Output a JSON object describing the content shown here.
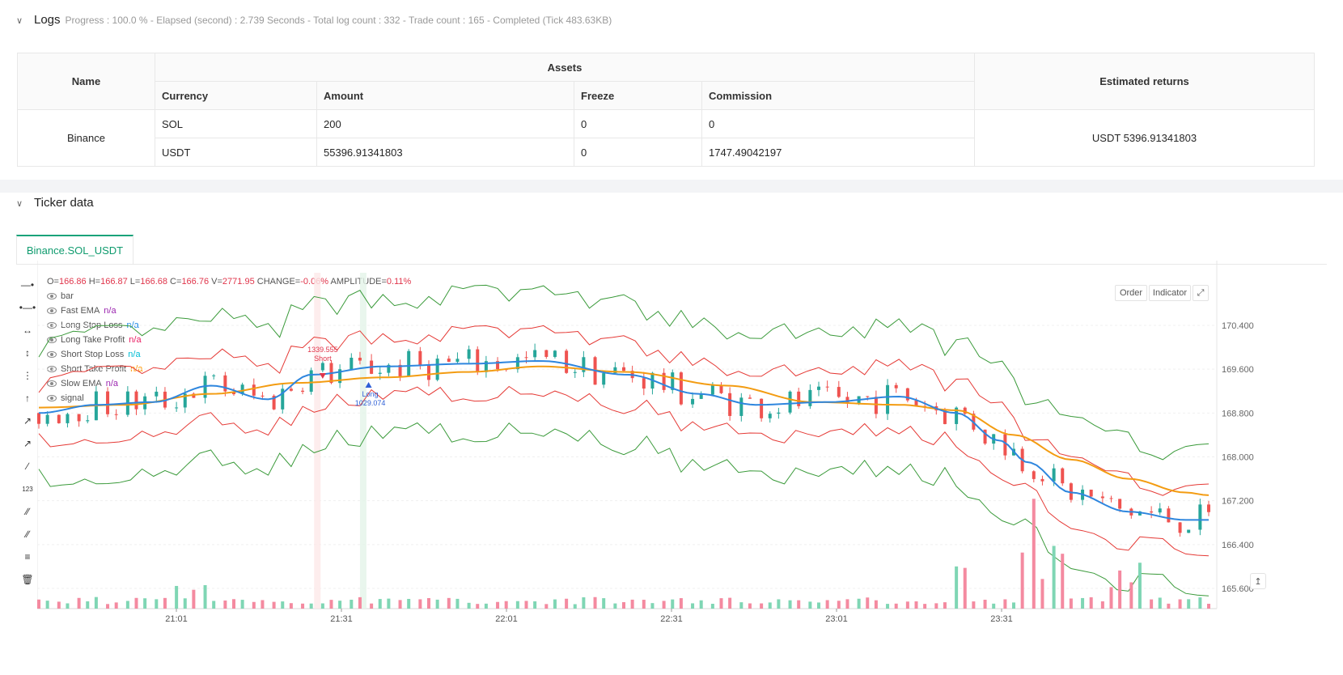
{
  "logs": {
    "title": "Logs",
    "summary": "Progress : 100.0 % - Elapsed (second) : 2.739  Seconds - Total log count : 332 - Trade count : 165 - Completed (Tick 483.63KB)",
    "table": {
      "name_header": "Name",
      "assets_header": "Assets",
      "returns_header": "Estimated returns",
      "columns": [
        "Currency",
        "Amount",
        "Freeze",
        "Commission"
      ],
      "exchange": "Binance",
      "rows": [
        {
          "currency": "SOL",
          "amount": "200",
          "freeze": "0",
          "commission": "0"
        },
        {
          "currency": "USDT",
          "amount": "55396.91341803",
          "freeze": "0",
          "commission": "1747.49042197"
        }
      ],
      "estimated_returns": "USDT 5396.91341803"
    }
  },
  "ticker": {
    "title": "Ticker data",
    "tab": "Binance.SOL_USDT",
    "buttons": {
      "order": "Order",
      "indicator": "Indicator"
    },
    "ohlc": {
      "o": "166.86",
      "h": "166.87",
      "l": "166.68",
      "c": "166.76",
      "v": "2771.95",
      "change": "-0.06%",
      "amplitude": "0.11%"
    },
    "legend": [
      {
        "label": "bar",
        "value": "",
        "color": "#555555"
      },
      {
        "label": "Fast EMA",
        "value": "n/a",
        "color": "#9c27b0"
      },
      {
        "label": "Long Stop Loss",
        "value": "n/a",
        "color": "#1e88e5"
      },
      {
        "label": "Long Take Profit",
        "value": "n/a",
        "color": "#e91e63"
      },
      {
        "label": "Short Stop Loss",
        "value": "n/a",
        "color": "#00bcd4"
      },
      {
        "label": "Short Take Profit",
        "value": "n/a",
        "color": "#ff9800"
      },
      {
        "label": "Slow EMA",
        "value": "n/a",
        "color": "#9c27b0"
      },
      {
        "label": "signal",
        "value": "",
        "color": "#555555"
      }
    ],
    "annotations": {
      "short_price": "1339.555",
      "short_label": "Short",
      "long_label": "Long",
      "long_price": "1029.074"
    },
    "chart_data": {
      "type": "candlestick",
      "y_ticks": [
        "170.400",
        "169.600",
        "168.800",
        "168.000",
        "167.200",
        "166.400",
        "165.600"
      ],
      "x_ticks": [
        "21:01",
        "21:31",
        "22:01",
        "22:31",
        "23:01",
        "23:31"
      ],
      "ylim": [
        165.6,
        170.4
      ],
      "colors": {
        "up": "#26a69a",
        "down": "#ef5350",
        "fast_ema": "#2e86de",
        "slow_ema": "#f39c12",
        "inner_band": "#e53935",
        "outer_band": "#3a9a3a"
      },
      "fast_ema_anchors": [
        [
          0,
          168.8
        ],
        [
          20,
          168.95
        ],
        [
          40,
          169.0
        ],
        [
          60,
          169.3
        ],
        [
          80,
          169.05
        ],
        [
          95,
          169.5
        ],
        [
          120,
          169.65
        ],
        [
          150,
          169.7
        ],
        [
          175,
          169.75
        ],
        [
          205,
          169.5
        ],
        [
          230,
          169.15
        ],
        [
          250,
          168.95
        ],
        [
          275,
          169.0
        ],
        [
          300,
          169.1
        ],
        [
          320,
          168.8
        ],
        [
          335,
          168.3
        ],
        [
          345,
          167.9
        ],
        [
          360,
          167.35
        ],
        [
          380,
          167.0
        ],
        [
          400,
          166.85
        ],
        [
          408,
          166.85
        ]
      ],
      "slow_ema_anchors": [
        [
          0,
          168.9
        ],
        [
          30,
          168.95
        ],
        [
          60,
          169.15
        ],
        [
          90,
          169.35
        ],
        [
          120,
          169.45
        ],
        [
          150,
          169.55
        ],
        [
          175,
          169.65
        ],
        [
          205,
          169.55
        ],
        [
          240,
          169.3
        ],
        [
          270,
          169.0
        ],
        [
          300,
          168.95
        ],
        [
          320,
          168.85
        ],
        [
          340,
          168.4
        ],
        [
          360,
          167.95
        ],
        [
          380,
          167.6
        ],
        [
          400,
          167.35
        ],
        [
          408,
          167.3
        ]
      ],
      "inner_band_offset": 0.55,
      "outer_band_offset": 1.25,
      "volume_spikes": [
        [
          345,
          9.6
        ],
        [
          357,
          7.2
        ],
        [
          352,
          5.6
        ],
        [
          375,
          4.8
        ],
        [
          383,
          4.6
        ],
        [
          320,
          3.9
        ],
        [
          323,
          4.3
        ]
      ]
    }
  }
}
